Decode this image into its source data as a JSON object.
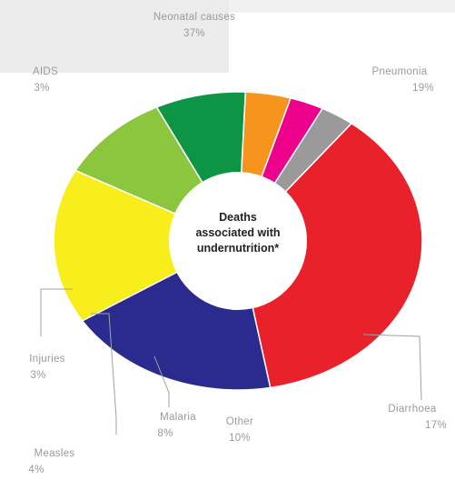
{
  "chart_data": {
    "type": "pie",
    "variant": "donut",
    "center_label": [
      "Deaths",
      "associated with",
      "undernutrition*"
    ],
    "slices": [
      {
        "label": "Neonatal causes",
        "value": 37,
        "value_label": "37%",
        "color": "#e8212a"
      },
      {
        "label": "Pneumonia",
        "value": 19,
        "value_label": "19%",
        "color": "#2b2b8f"
      },
      {
        "label": "Diarrhoea",
        "value": 17,
        "value_label": "17%",
        "color": "#f7ee1b"
      },
      {
        "label": "Other",
        "value": 10,
        "value_label": "10%",
        "color": "#8cc63f"
      },
      {
        "label": "Malaria",
        "value": 8,
        "value_label": "8%",
        "color": "#0d9445"
      },
      {
        "label": "Measles",
        "value": 4,
        "value_label": "4%",
        "color": "#f7941d"
      },
      {
        "label": "Injuries",
        "value": 3,
        "value_label": "3%",
        "color": "#ec008c"
      },
      {
        "label": "AIDS",
        "value": 3,
        "value_label": "3%",
        "color": "#9a9a9a"
      }
    ],
    "start_angle_deg": 308,
    "direction": "clockwise"
  }
}
